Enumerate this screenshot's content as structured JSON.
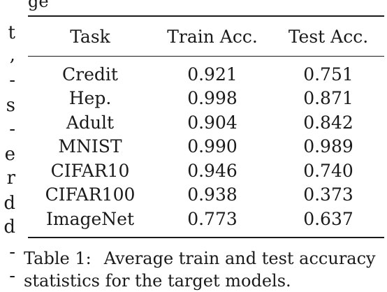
{
  "top_text": "ge",
  "left_fragments": [
    "t",
    ",",
    "-",
    "s",
    "-",
    "e",
    "r",
    "d",
    "d",
    "-",
    "-"
  ],
  "table": {
    "headers": [
      "Task",
      "Train Acc.",
      "Test Acc."
    ],
    "rows": [
      [
        "Credit",
        "0.921",
        "0.751"
      ],
      [
        "Hep.",
        "0.998",
        "0.871"
      ],
      [
        "Adult",
        "0.904",
        "0.842"
      ],
      [
        "MNIST",
        "0.990",
        "0.989"
      ],
      [
        "CIFAR10",
        "0.946",
        "0.740"
      ],
      [
        "CIFAR100",
        "0.938",
        "0.373"
      ],
      [
        "ImageNet",
        "0.773",
        "0.637"
      ]
    ]
  },
  "caption": {
    "label": "Table 1:",
    "line1": "Average train and test accuracy",
    "line2": "statistics for the target models."
  }
}
